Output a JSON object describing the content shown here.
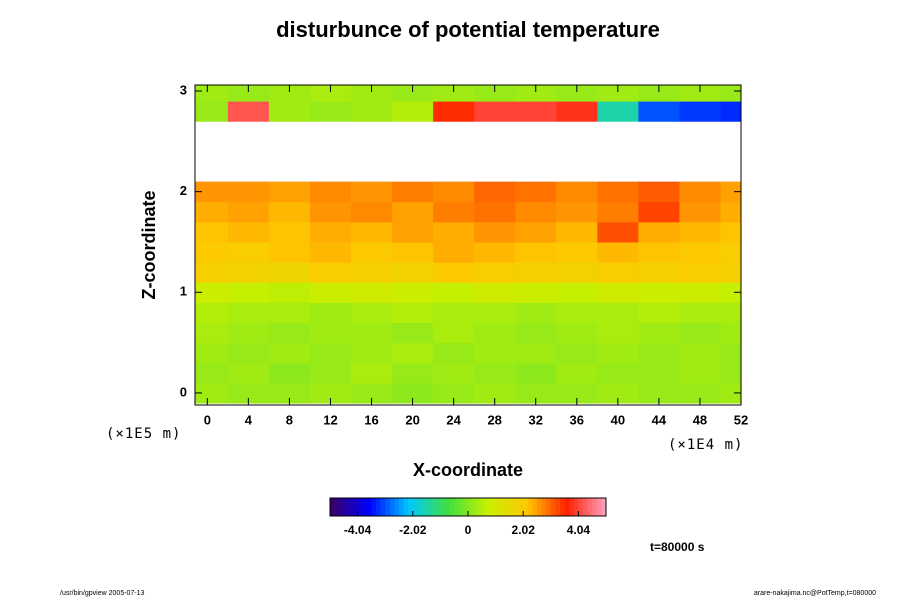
{
  "chart_data": {
    "type": "heatmap",
    "title": "disturbunce of potential temperature",
    "x_label": "X-coordinate",
    "y_label": "Z-coordinate",
    "x_unit": "(×1E4 m)",
    "y_unit": "(×1E5 m)",
    "time_label": "t=80000 s",
    "footer_left": "/usr/bin/gpview 2005-07-13",
    "footer_right": "arare-nakajima.nc@PotTemp,t=080000",
    "x": [
      0,
      4,
      8,
      12,
      16,
      20,
      24,
      28,
      32,
      36,
      40,
      44,
      48,
      52
    ],
    "y": [
      0,
      0.2,
      0.4,
      0.6,
      0.8,
      1.0,
      1.2,
      1.4,
      1.6,
      1.8,
      2.0,
      2.2,
      2.4,
      2.6,
      2.8,
      3.0
    ],
    "z": [
      [
        0.3,
        0.2,
        0.2,
        0.3,
        0.2,
        0.1,
        0.2,
        0.3,
        0.2,
        0.2,
        0.3,
        0.2,
        0.2,
        0.3
      ],
      [
        0.2,
        0.3,
        0.1,
        0.2,
        0.4,
        0.2,
        0.3,
        0.2,
        0.1,
        0.3,
        0.2,
        0.2,
        0.3,
        0.2
      ],
      [
        0.3,
        0.2,
        0.3,
        0.2,
        0.3,
        0.4,
        0.2,
        0.3,
        0.3,
        0.2,
        0.3,
        0.2,
        0.3,
        0.2
      ],
      [
        0.4,
        0.3,
        0.2,
        0.3,
        0.3,
        0.2,
        0.4,
        0.3,
        0.2,
        0.3,
        0.4,
        0.3,
        0.2,
        0.3
      ],
      [
        0.5,
        0.4,
        0.4,
        0.3,
        0.4,
        0.5,
        0.4,
        0.4,
        0.3,
        0.4,
        0.4,
        0.5,
        0.4,
        0.4
      ],
      [
        0.8,
        0.7,
        0.6,
        0.8,
        0.9,
        0.8,
        0.7,
        0.9,
        0.8,
        0.7,
        0.9,
        0.8,
        0.8,
        0.7
      ],
      [
        1.9,
        1.8,
        1.7,
        2.0,
        1.9,
        1.8,
        2.1,
        2.0,
        1.9,
        1.8,
        2.0,
        1.9,
        2.0,
        1.9
      ],
      [
        2.1,
        2.0,
        2.2,
        2.3,
        2.1,
        2.2,
        2.4,
        2.3,
        2.2,
        2.1,
        2.3,
        2.2,
        2.1,
        2.0
      ],
      [
        2.2,
        2.3,
        2.2,
        2.4,
        2.3,
        2.5,
        2.4,
        2.6,
        2.5,
        2.3,
        3.2,
        2.4,
        2.3,
        2.2
      ],
      [
        2.4,
        2.5,
        2.3,
        2.6,
        2.7,
        2.5,
        2.8,
        2.9,
        2.7,
        2.6,
        2.8,
        3.3,
        2.6,
        2.4
      ],
      [
        2.6,
        2.6,
        2.5,
        2.7,
        2.6,
        2.8,
        2.7,
        3.0,
        2.9,
        2.7,
        2.9,
        3.1,
        2.7,
        2.5
      ],
      [
        null,
        null,
        null,
        null,
        null,
        null,
        null,
        null,
        null,
        null,
        null,
        null,
        null,
        null
      ],
      [
        null,
        null,
        null,
        null,
        null,
        null,
        null,
        null,
        null,
        null,
        null,
        null,
        null,
        null
      ],
      [
        null,
        null,
        null,
        null,
        null,
        null,
        null,
        null,
        null,
        null,
        null,
        null,
        null,
        null
      ],
      [
        0.2,
        4.2,
        0.3,
        0.2,
        0.3,
        0.5,
        3.5,
        4.0,
        4.0,
        3.8,
        -1.5,
        -3.0,
        -3.2,
        -3.3
      ],
      [
        0.3,
        0.2,
        0.3,
        0.4,
        0.3,
        0.2,
        0.3,
        0.2,
        0.3,
        0.2,
        0.3,
        0.2,
        0.3,
        0.2
      ]
    ],
    "xlim": [
      -1.2,
      52
    ],
    "ylim": [
      -0.12,
      3.06
    ],
    "xticks": [
      0,
      4,
      8,
      12,
      16,
      20,
      24,
      28,
      32,
      36,
      40,
      44,
      48,
      52
    ],
    "yticks": [
      0,
      1,
      2,
      3
    ],
    "clim": [
      -5.05,
      5.05
    ],
    "cticks": [
      -4.04,
      -2.02,
      0,
      2.02,
      4.04
    ],
    "colormap": [
      "#3c0064",
      "#0000ff",
      "#00c8ff",
      "#40e040",
      "#c8f000",
      "#ffc800",
      "#ff2000",
      "#ffa0c0"
    ]
  }
}
